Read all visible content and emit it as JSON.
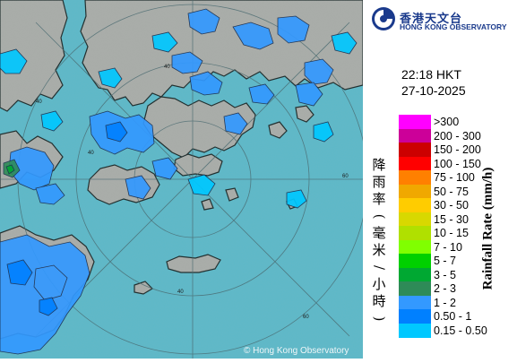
{
  "header": {
    "org_name_zh": "香港天文台",
    "org_name_en": "HONG KONG OBSERVATORY"
  },
  "timestamp": {
    "time": "22:18 HKT",
    "date": "27-10-2025"
  },
  "legend": {
    "title_zh": "降雨率(毫米/小時)",
    "title_en": "Rainfall Rate (mm/h)",
    "items": [
      {
        "label": ">300",
        "color": "#ff00ff"
      },
      {
        "label": "200 - 300",
        "color": "#cc0099"
      },
      {
        "label": "150 - 200",
        "color": "#cc0000"
      },
      {
        "label": "100 - 150",
        "color": "#ff0000"
      },
      {
        "label": "75 - 100",
        "color": "#ff8000"
      },
      {
        "label": "50 - 75",
        "color": "#f0a800"
      },
      {
        "label": "30 - 50",
        "color": "#ffcc00"
      },
      {
        "label": "15 - 30",
        "color": "#d8d800"
      },
      {
        "label": "10 - 15",
        "color": "#b0e000"
      },
      {
        "label": "7 - 10",
        "color": "#80ff00"
      },
      {
        "label": "5 - 7",
        "color": "#00d000"
      },
      {
        "label": "3 - 5",
        "color": "#00a832"
      },
      {
        "label": "2 - 3",
        "color": "#2e8b57"
      },
      {
        "label": "1 - 2",
        "color": "#3399ff"
      },
      {
        "label": "0.50 - 1",
        "color": "#0080ff"
      },
      {
        "label": "0.15 - 0.50",
        "color": "#00c8ff"
      }
    ]
  },
  "map": {
    "range_ring_labels": [
      "40",
      "40",
      "40",
      "60",
      "60",
      "40"
    ],
    "sea_color": "#5cb8c8",
    "land_color": "#a8aca8",
    "copyright": "© Hong Kong Observatory"
  }
}
